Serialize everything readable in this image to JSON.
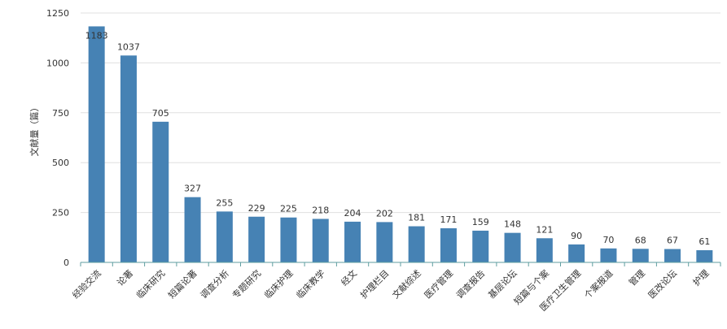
{
  "chart_data": {
    "type": "bar",
    "ylabel": "文献量（篇）",
    "ylim": [
      0,
      1250
    ],
    "yticks": [
      0,
      250,
      500,
      750,
      1000,
      1250
    ],
    "grid": true,
    "categories": [
      "经验交流",
      "论著",
      "临床研究",
      "短篇论著",
      "调查分析",
      "专题研究",
      "临床护理",
      "临床教学",
      "经文",
      "护理栏目",
      "文献综述",
      "医疗管理",
      "调查报告",
      "基层论坛",
      "短篇与个案",
      "医疗卫生管理",
      "个案报道",
      "管理",
      "医改论坛",
      "护理"
    ],
    "values": [
      1183,
      1037,
      705,
      327,
      255,
      229,
      225,
      218,
      204,
      202,
      181,
      171,
      159,
      148,
      121,
      90,
      70,
      68,
      67,
      61
    ],
    "bar_color": "#4682b4",
    "axis_color": "#5f9ea0",
    "grid_color": "#e0e0e0"
  }
}
